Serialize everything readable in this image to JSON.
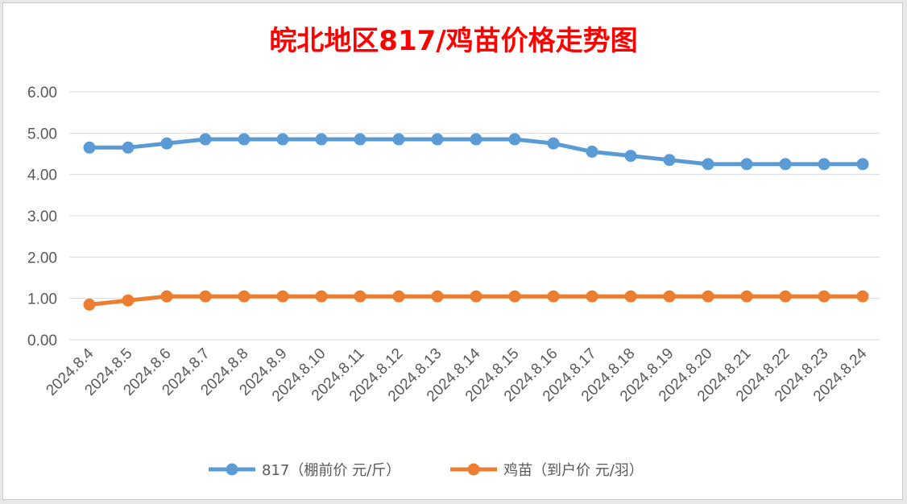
{
  "chart_data": {
    "type": "line",
    "title": "皖北地区817/鸡苗价格走势图",
    "title_color": "#ff0000",
    "categories": [
      "2024.8.4",
      "2024.8.5",
      "2024.8.6",
      "2024.8.7",
      "2024.8.8",
      "2024.8.9",
      "2024.8.10",
      "2024.8.11",
      "2024.8.12",
      "2024.8.13",
      "2024.8.14",
      "2024.8.15",
      "2024.8.16",
      "2024.8.17",
      "2024.8.18",
      "2024.8.19",
      "2024.8.20",
      "2024.8.21",
      "2024.8.22",
      "2024.8.23",
      "2024.8.24"
    ],
    "series": [
      {
        "name": "817（棚前价 元/斤）",
        "color": "#5b9bd5",
        "values": [
          4.65,
          4.65,
          4.75,
          4.85,
          4.85,
          4.85,
          4.85,
          4.85,
          4.85,
          4.85,
          4.85,
          4.85,
          4.75,
          4.55,
          4.45,
          4.35,
          4.25,
          4.25,
          4.25,
          4.25,
          4.25
        ]
      },
      {
        "name": "鸡苗（到户价 元/羽）",
        "color": "#ed7d31",
        "values": [
          0.85,
          0.95,
          1.05,
          1.05,
          1.05,
          1.05,
          1.05,
          1.05,
          1.05,
          1.05,
          1.05,
          1.05,
          1.05,
          1.05,
          1.05,
          1.05,
          1.05,
          1.05,
          1.05,
          1.05,
          1.05
        ]
      }
    ],
    "yticks": [
      "0.00",
      "1.00",
      "2.00",
      "3.00",
      "4.00",
      "5.00",
      "6.00"
    ],
    "ylim": [
      0,
      6
    ],
    "xlabel": "",
    "ylabel": "",
    "grid": true,
    "legend_position": "bottom",
    "marker": "circle"
  }
}
